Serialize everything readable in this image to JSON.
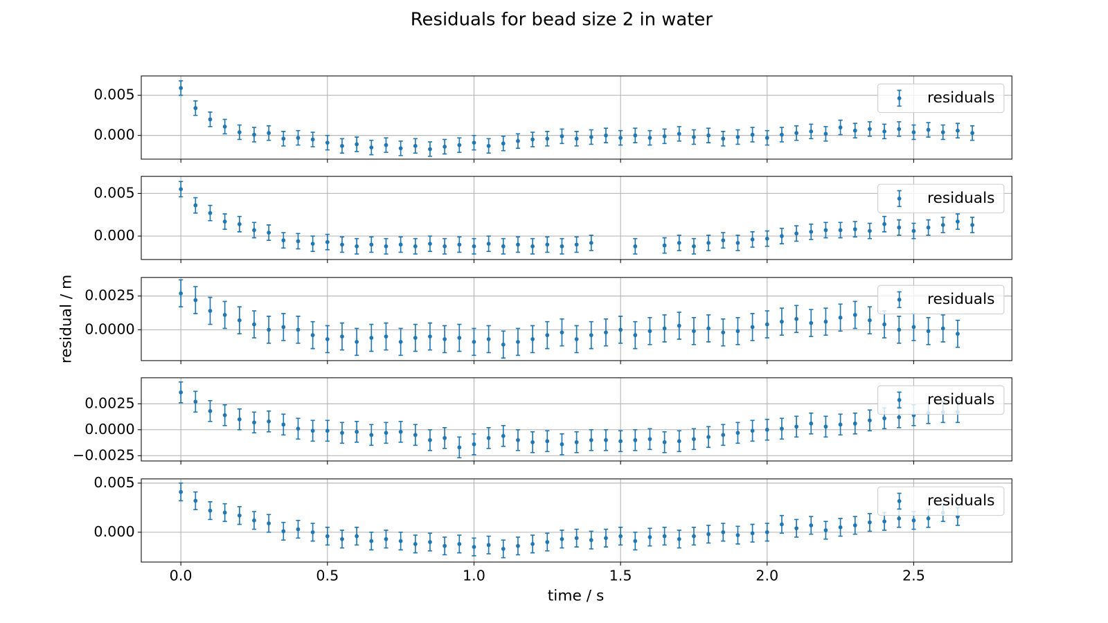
{
  "figure": {
    "title": "Residuals for bead  size 2 in water",
    "xlabel": "time / s",
    "ylabel": "residual / m",
    "xlim": [
      -0.135,
      2.835
    ],
    "xticks": [
      {
        "value": 0,
        "label": "0.0"
      },
      0.5,
      {
        "value": 1,
        "label": "1.0"
      },
      1.5,
      {
        "value": 2,
        "label": "2.0"
      },
      2.5
    ]
  },
  "chart_data": [
    {
      "type": "errorbar",
      "x": [
        0,
        0.05,
        0.1,
        0.15,
        0.2,
        0.25,
        0.3,
        0.35,
        0.4,
        0.45,
        0.5,
        0.55,
        0.6,
        0.65,
        0.7,
        0.75,
        0.8,
        0.85,
        0.9,
        0.95,
        1,
        1.05,
        1.1,
        1.15,
        1.2,
        1.25,
        1.3,
        1.35,
        1.4,
        1.45,
        1.5,
        1.55,
        1.6,
        1.65,
        1.7,
        1.75,
        1.8,
        1.85,
        1.9,
        1.95,
        2,
        2.05,
        2.1,
        2.15,
        2.2,
        2.25,
        2.3,
        2.35,
        2.4,
        2.45,
        2.5,
        2.55,
        2.6,
        2.65,
        2.7
      ],
      "series": [
        {
          "name": "residuals",
          "color": "#1f77b4",
          "error": 0.0009,
          "values": [
            0.0059,
            0.0034,
            0.002,
            0.0011,
            0.0004,
            0.0001,
            0.0003,
            -0.0004,
            -0.0003,
            -0.0005,
            -0.0009,
            -0.0013,
            -0.0011,
            -0.0015,
            -0.0012,
            -0.0016,
            -0.0013,
            -0.0017,
            -0.0014,
            -0.0012,
            -0.0009,
            -0.0013,
            -0.001,
            -0.0007,
            -0.0005,
            -0.0004,
            -0.0001,
            -0.0004,
            -0.0002,
            0,
            -0.0003,
            0,
            -0.0003,
            -0.0001,
            0.0002,
            -0.0002,
            0,
            -0.0004,
            -0.0002,
            0.0001,
            -0.0003,
            0.0001,
            0.0003,
            0.0005,
            0.0002,
            0.001,
            0.0006,
            0.0008,
            0.0005,
            0.0008,
            0.0004,
            0.0007,
            0.0004,
            0.0006,
            0.0003
          ]
        }
      ],
      "ylim": [
        -0.00295,
        0.0074
      ],
      "yticks": [
        {
          "value": 0,
          "label": "0.000"
        },
        0.005
      ],
      "grid": true,
      "legend": "upper right"
    },
    {
      "type": "errorbar",
      "x": [
        0,
        0.05,
        0.1,
        0.15,
        0.2,
        0.25,
        0.3,
        0.35,
        0.4,
        0.45,
        0.5,
        0.55,
        0.6,
        0.65,
        0.7,
        0.75,
        0.8,
        0.85,
        0.9,
        0.95,
        1,
        1.05,
        1.1,
        1.15,
        1.2,
        1.25,
        1.3,
        1.35,
        1.4,
        1.45,
        1.5,
        1.55,
        1.6,
        1.65,
        1.7,
        1.75,
        1.8,
        1.85,
        1.9,
        1.95,
        2,
        2.05,
        2.1,
        2.15,
        2.2,
        2.25,
        2.3,
        2.35,
        2.4,
        2.45,
        2.5,
        2.55,
        2.6,
        2.65,
        2.7
      ],
      "series": [
        {
          "name": "residuals",
          "color": "#1f77b4",
          "error": 0.0009,
          "values": [
            0.0055,
            0.0036,
            0.0027,
            0.0017,
            0.0014,
            0.0007,
            0.0004,
            -0.0005,
            -0.0006,
            -0.0009,
            -0.0007,
            -0.001,
            -0.0012,
            -0.001,
            -0.0012,
            -0.001,
            -0.0012,
            -0.0009,
            -0.0012,
            -0.001,
            -0.0012,
            -0.0009,
            -0.0012,
            -0.001,
            -0.0012,
            -0.001,
            -0.0012,
            -0.001,
            -0.0008,
            null,
            null,
            -0.0012,
            null,
            -0.0011,
            -0.0008,
            -0.0012,
            -0.0008,
            -0.0005,
            -0.0008,
            -0.0004,
            -0.0003,
            0,
            0.0003,
            0.0005,
            0.0007,
            0.0007,
            0.0008,
            0.0006,
            0.0014,
            0.001,
            0.0006,
            0.001,
            0.0013,
            0.0017,
            0.0013
          ]
        }
      ],
      "ylim": [
        -0.00275,
        0.007
      ],
      "yticks": [
        {
          "value": 0,
          "label": "0.000"
        },
        0.005
      ],
      "grid": true,
      "legend": "upper right"
    },
    {
      "type": "errorbar",
      "x": [
        0,
        0.05,
        0.1,
        0.15,
        0.2,
        0.25,
        0.3,
        0.35,
        0.4,
        0.45,
        0.5,
        0.55,
        0.6,
        0.65,
        0.7,
        0.75,
        0.8,
        0.85,
        0.9,
        0.95,
        1,
        1.05,
        1.1,
        1.15,
        1.2,
        1.25,
        1.3,
        1.35,
        1.4,
        1.45,
        1.5,
        1.55,
        1.6,
        1.65,
        1.7,
        1.75,
        1.8,
        1.85,
        1.9,
        1.95,
        2,
        2.05,
        2.1,
        2.15,
        2.2,
        2.25,
        2.3,
        2.35,
        2.4,
        2.45,
        2.5,
        2.55,
        2.6,
        2.65,
        2.7
      ],
      "series": [
        {
          "name": "residuals",
          "color": "#1f77b4",
          "error": 0.001,
          "values": [
            0.0027,
            0.0022,
            0.0014,
            0.0011,
            0.0007,
            0.0004,
            0,
            0.0002,
            0,
            -0.0004,
            -0.0007,
            -0.0005,
            -0.0009,
            -0.0006,
            -0.0005,
            -0.0009,
            -0.0006,
            -0.0005,
            -0.0007,
            -0.0006,
            -0.0009,
            -0.0007,
            -0.0011,
            -0.0009,
            -0.0007,
            -0.0004,
            -0.0002,
            -0.0007,
            -0.0004,
            -0.0002,
            0,
            -0.0004,
            -0.0001,
            0.0001,
            0.0003,
            -0.0001,
            0.0001,
            -0.0002,
            -0.0001,
            0.0002,
            0.0004,
            0.0006,
            0.0008,
            0.0005,
            0.0006,
            0.0009,
            0.0011,
            0.0007,
            0.0004,
            0,
            0.0002,
            -0.0001,
            0.0001,
            -0.0003,
            null
          ]
        }
      ],
      "ylim": [
        -0.00229,
        0.00388
      ],
      "yticks": [
        {
          "value": 0,
          "label": "0.0000"
        },
        0.0025
      ],
      "grid": true,
      "legend": "upper right"
    },
    {
      "type": "errorbar",
      "x": [
        0,
        0.05,
        0.1,
        0.15,
        0.2,
        0.25,
        0.3,
        0.35,
        0.4,
        0.45,
        0.5,
        0.55,
        0.6,
        0.65,
        0.7,
        0.75,
        0.8,
        0.85,
        0.9,
        0.95,
        1,
        1.05,
        1.1,
        1.15,
        1.2,
        1.25,
        1.3,
        1.35,
        1.4,
        1.45,
        1.5,
        1.55,
        1.6,
        1.65,
        1.7,
        1.75,
        1.8,
        1.85,
        1.9,
        1.95,
        2,
        2.05,
        2.1,
        2.15,
        2.2,
        2.25,
        2.3,
        2.35,
        2.4,
        2.45,
        2.5,
        2.55,
        2.6,
        2.65,
        2.7
      ],
      "series": [
        {
          "name": "residuals",
          "color": "#1f77b4",
          "error": 0.001,
          "values": [
            0.0036,
            0.0027,
            0.0018,
            0.0014,
            0.001,
            0.0007,
            0.0008,
            0.0005,
            0.0001,
            -0.0001,
            -0.0001,
            -0.0003,
            -0.0002,
            -0.0005,
            -0.0003,
            -0.0002,
            -0.0005,
            -0.001,
            -0.0008,
            -0.0017,
            -0.0014,
            -0.0008,
            -0.0006,
            -0.001,
            -0.0012,
            -0.0011,
            -0.0014,
            -0.0012,
            -0.001,
            -0.001,
            -0.0011,
            -0.001,
            -0.0009,
            -0.0012,
            -0.0011,
            -0.0009,
            -0.0007,
            -0.0005,
            -0.0003,
            -0.0001,
            0,
            0.0001,
            0.0003,
            0.0006,
            0.0003,
            0.0005,
            0.0006,
            0.0009,
            0.0011,
            0.0012,
            0.0014,
            0.0016,
            0.0017,
            0.0017,
            null
          ]
        }
      ],
      "ylim": [
        -0.00301,
        0.005
      ],
      "yticks": [
        {
          "value": -0.0025,
          "label": "−0.0025"
        },
        {
          "value": 0,
          "label": "0.0000"
        },
        0.0025
      ],
      "grid": true,
      "legend": "upper right"
    },
    {
      "type": "errorbar",
      "x": [
        0,
        0.05,
        0.1,
        0.15,
        0.2,
        0.25,
        0.3,
        0.35,
        0.4,
        0.45,
        0.5,
        0.55,
        0.6,
        0.65,
        0.7,
        0.75,
        0.8,
        0.85,
        0.9,
        0.95,
        1,
        1.05,
        1.1,
        1.15,
        1.2,
        1.25,
        1.3,
        1.35,
        1.4,
        1.45,
        1.5,
        1.55,
        1.6,
        1.65,
        1.7,
        1.75,
        1.8,
        1.85,
        1.9,
        1.95,
        2,
        2.05,
        2.1,
        2.15,
        2.2,
        2.25,
        2.3,
        2.35,
        2.4,
        2.45,
        2.5,
        2.55,
        2.6,
        2.65,
        2.7
      ],
      "series": [
        {
          "name": "residuals",
          "color": "#1f77b4",
          "error": 0.0009,
          "values": [
            0.0041,
            0.0032,
            0.0022,
            0.002,
            0.0017,
            0.0012,
            0.0009,
            0.0001,
            0.0003,
            0,
            -0.0004,
            -0.0007,
            -0.0004,
            -0.0009,
            -0.0007,
            -0.0009,
            -0.0012,
            -0.001,
            -0.0014,
            -0.0012,
            -0.0015,
            -0.0013,
            -0.0017,
            -0.0014,
            -0.0012,
            -0.001,
            -0.0007,
            -0.0006,
            -0.0008,
            -0.0006,
            -0.0004,
            -0.0009,
            -0.0005,
            -0.0004,
            -0.0007,
            -0.0004,
            -0.0002,
            0,
            -0.0003,
            -0.0001,
            0,
            0.0008,
            0.0004,
            0.0007,
            0.0002,
            0.0005,
            0.0007,
            0.001,
            0.0011,
            0.0014,
            0.0012,
            0.0014,
            0.002,
            0.0016,
            null
          ]
        }
      ],
      "ylim": [
        -0.00304,
        0.00543
      ],
      "yticks": [
        {
          "value": 0,
          "label": "0.000"
        },
        0.005
      ],
      "grid": true,
      "legend": "upper right"
    }
  ]
}
